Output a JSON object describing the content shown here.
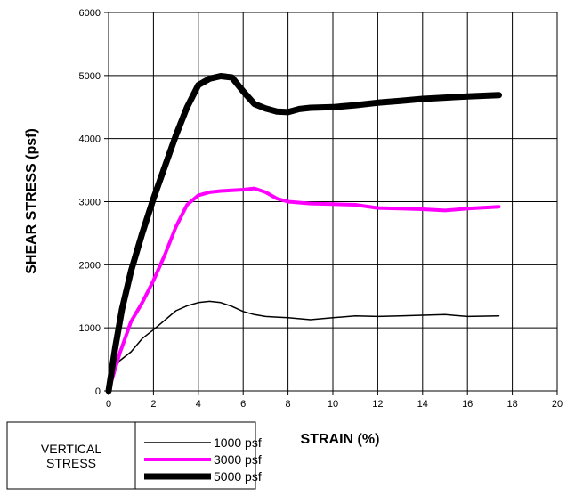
{
  "chart_data": {
    "type": "line",
    "title": "",
    "xlabel": "STRAIN (%)",
    "ylabel": "SHEAR STRESS (psf)",
    "xlim": [
      0,
      20
    ],
    "ylim": [
      0,
      6000
    ],
    "x_ticks": [
      0,
      2,
      4,
      6,
      8,
      10,
      12,
      14,
      16,
      18,
      20
    ],
    "y_ticks": [
      0,
      1000,
      2000,
      3000,
      4000,
      5000,
      6000
    ],
    "grid": true,
    "legend": {
      "title_lines": [
        "VERTICAL",
        "STRESS"
      ],
      "placement": "bottom-left, outside plot"
    },
    "series": [
      {
        "name": "1000 psf",
        "color": "#000000",
        "weight": "thin",
        "x": [
          0,
          0.2,
          0.5,
          1.0,
          1.5,
          2.0,
          2.5,
          3.0,
          3.5,
          4.0,
          4.5,
          5.0,
          5.5,
          6.0,
          6.5,
          7.0,
          7.5,
          8.0,
          9.0,
          10.0,
          11.0,
          12.0,
          13.0,
          14.0,
          15.0,
          16.0,
          17.4
        ],
        "y": [
          0,
          320,
          480,
          620,
          830,
          970,
          1120,
          1270,
          1350,
          1400,
          1420,
          1400,
          1340,
          1260,
          1210,
          1180,
          1170,
          1160,
          1130,
          1160,
          1190,
          1180,
          1190,
          1200,
          1210,
          1180,
          1190
        ]
      },
      {
        "name": "3000 psf",
        "color": "#ff00ff",
        "weight": "medium",
        "x": [
          0,
          0.5,
          1.0,
          1.5,
          2.0,
          2.5,
          3.0,
          3.5,
          4.0,
          4.5,
          5.0,
          5.5,
          6.0,
          6.5,
          7.0,
          7.5,
          8.0,
          9.0,
          10.0,
          11.0,
          12.0,
          13.0,
          14.0,
          15.0,
          16.0,
          17.4
        ],
        "y": [
          0,
          600,
          1100,
          1400,
          1750,
          2150,
          2600,
          2950,
          3100,
          3150,
          3170,
          3180,
          3190,
          3210,
          3150,
          3050,
          3000,
          2970,
          2960,
          2950,
          2900,
          2890,
          2880,
          2860,
          2890,
          2920
        ]
      },
      {
        "name": "5000 psf",
        "color": "#000000",
        "weight": "thick",
        "x": [
          0,
          0.3,
          0.6,
          1.0,
          1.5,
          2.0,
          2.5,
          3.0,
          3.5,
          4.0,
          4.5,
          5.0,
          5.5,
          6.0,
          6.5,
          7.0,
          7.5,
          8.0,
          8.5,
          9.0,
          10.0,
          11.0,
          12.0,
          13.0,
          14.0,
          15.0,
          16.0,
          17.4
        ],
        "y": [
          0,
          700,
          1300,
          1900,
          2500,
          3050,
          3550,
          4050,
          4500,
          4850,
          4950,
          4990,
          4970,
          4750,
          4550,
          4480,
          4430,
          4420,
          4470,
          4490,
          4500,
          4530,
          4570,
          4600,
          4630,
          4650,
          4670,
          4690
        ]
      }
    ]
  }
}
